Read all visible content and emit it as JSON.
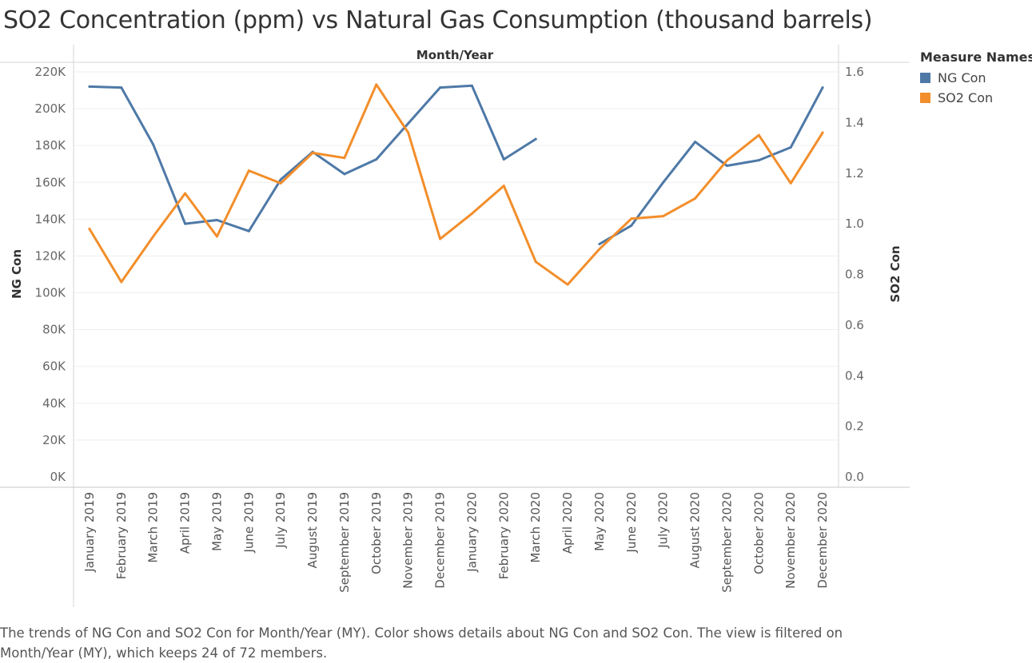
{
  "title": "SO2 Concentration (ppm) vs Natural Gas Consumption (thousand barrels)",
  "legend": {
    "title": "Measure Names",
    "items": [
      {
        "label": "NG Con",
        "color": "#4e79a7"
      },
      {
        "label": "SO2 Con",
        "color": "#f28e2b"
      }
    ]
  },
  "caption": "The trends of NG Con and SO2 Con for Month/Year (MY).  Color shows details about NG Con and SO2 Con. The view is filtered on Month/Year (MY), which keeps 24 of 72 members.",
  "chart_data": {
    "type": "line",
    "xlabel": "Month/Year",
    "ylabel": "NG Con",
    "y2label": "SO2 Con",
    "ylim": [
      0,
      220000
    ],
    "y2lim": [
      0,
      1.6
    ],
    "y_ticks": [
      0,
      20000,
      40000,
      60000,
      80000,
      100000,
      120000,
      140000,
      160000,
      180000,
      200000,
      220000
    ],
    "y_tick_labels": [
      "0K",
      "20K",
      "40K",
      "60K",
      "80K",
      "100K",
      "120K",
      "140K",
      "160K",
      "180K",
      "200K",
      "220K"
    ],
    "y2_ticks": [
      0,
      0.2,
      0.4,
      0.6,
      0.8,
      1.0,
      1.2,
      1.4,
      1.6
    ],
    "y2_tick_labels": [
      "0.0",
      "0.2",
      "0.4",
      "0.6",
      "0.8",
      "1.0",
      "1.2",
      "1.4",
      "1.6"
    ],
    "grid": true,
    "legend_position": "top-right",
    "categories": [
      "January 2019",
      "February 2019",
      "March 2019",
      "April 2019",
      "May 2019",
      "June 2019",
      "July 2019",
      "August 2019",
      "September 2019",
      "October 2019",
      "November 2019",
      "December 2019",
      "January 2020",
      "February 2020",
      "March 2020",
      "April 2020",
      "May 2020",
      "June 2020",
      "July 2020",
      "August 2020",
      "September 2020",
      "October 2020",
      "November 2020",
      "December 2020"
    ],
    "series": [
      {
        "name": "NG Con",
        "axis": "left",
        "color": "#4e79a7",
        "values": [
          212000,
          211500,
          180500,
          137500,
          139500,
          133500,
          161500,
          176500,
          164500,
          172500,
          192000,
          211500,
          212500,
          172500,
          183500,
          null,
          126500,
          136500,
          160000,
          182000,
          169000,
          172000,
          179000,
          211500
        ]
      },
      {
        "name": "SO2 Con",
        "axis": "right",
        "color": "#f28e2b",
        "values": [
          0.98,
          0.77,
          0.95,
          1.12,
          0.95,
          1.21,
          1.16,
          1.28,
          1.26,
          1.55,
          1.36,
          0.94,
          1.04,
          1.15,
          0.85,
          0.76,
          0.9,
          1.02,
          1.03,
          1.1,
          1.25,
          1.35,
          1.16,
          1.36
        ]
      }
    ]
  }
}
